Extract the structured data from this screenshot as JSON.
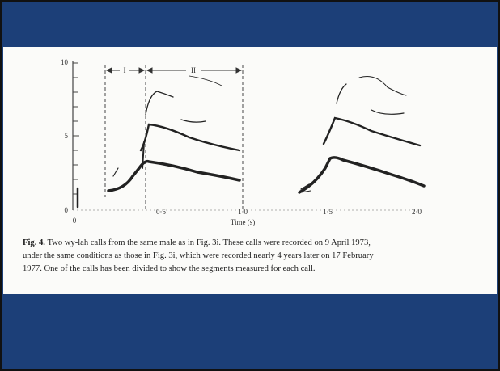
{
  "figure": {
    "yticks": [
      "0",
      "5",
      "10"
    ],
    "xticks": [
      "0",
      "0·5",
      "1·0",
      "1·5",
      "2·0"
    ],
    "x_label": "Time (s)",
    "segments": [
      "I",
      "II"
    ],
    "caption": {
      "label": "Fig. 4.",
      "lines": [
        "Two wy-lah calls from the same male as in Fig. 3i. These calls were recorded on 9 April 1973,",
        "under the same conditions as those in Fig. 3i, which were recorded nearly 4 years later on 17 February",
        "1977. One of the calls has been divided to show the segments measured for each call."
      ]
    }
  }
}
